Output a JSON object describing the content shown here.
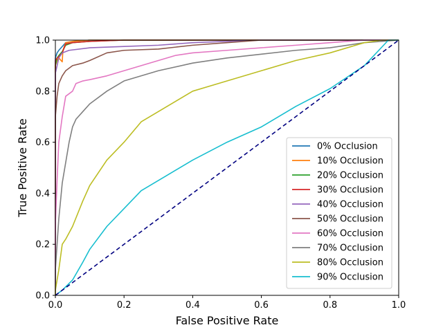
{
  "chart_data": {
    "type": "line",
    "xlabel": "False Positive Rate",
    "ylabel": "True Positive Rate",
    "xlim": [
      0.0,
      1.0
    ],
    "ylim": [
      0.0,
      1.0
    ],
    "xticks": [
      "0.0",
      "0.2",
      "0.4",
      "0.6",
      "0.8",
      "1.0"
    ],
    "yticks": [
      "0.0",
      "0.2",
      "0.4",
      "0.6",
      "0.8",
      "1.0"
    ],
    "grid": false,
    "legend_position": "lower-right",
    "series": [
      {
        "name": "0% Occlusion",
        "color": "#1f77b4",
        "x": [
          0,
          0,
          0.005,
          0.01,
          0.02,
          0.03,
          0.05,
          0.1,
          0.2,
          1.0
        ],
        "y": [
          0,
          0.93,
          0.95,
          0.96,
          0.975,
          0.99,
          0.995,
          1.0,
          1.0,
          1.0
        ]
      },
      {
        "name": "10% Occlusion",
        "color": "#ff7f0e",
        "x": [
          0,
          0,
          0.005,
          0.01,
          0.02,
          0.022,
          0.03,
          0.05,
          0.1,
          1.0
        ],
        "y": [
          0,
          0.9,
          0.92,
          0.93,
          0.915,
          0.96,
          0.99,
          0.995,
          1.0,
          1.0
        ]
      },
      {
        "name": "20% Occlusion",
        "color": "#2ca02c",
        "x": [
          0,
          0,
          0.005,
          0.01,
          0.02,
          0.03,
          0.05,
          0.1,
          0.2,
          1.0
        ],
        "y": [
          0,
          0.9,
          0.93,
          0.94,
          0.955,
          0.98,
          0.99,
          0.995,
          1.0,
          1.0
        ]
      },
      {
        "name": "30% Occlusion",
        "color": "#d62728",
        "x": [
          0,
          0,
          0.005,
          0.01,
          0.02,
          0.03,
          0.05,
          0.1,
          0.2,
          1.0
        ],
        "y": [
          0,
          0.92,
          0.93,
          0.935,
          0.95,
          0.985,
          0.99,
          0.995,
          1.0,
          1.0
        ]
      },
      {
        "name": "40% Occlusion",
        "color": "#9467bd",
        "x": [
          0,
          0,
          0.005,
          0.01,
          0.02,
          0.04,
          0.1,
          0.2,
          0.3,
          0.4,
          0.5,
          0.6,
          0.7,
          0.8,
          0.9,
          1.0
        ],
        "y": [
          0,
          0.87,
          0.9,
          0.93,
          0.95,
          0.96,
          0.97,
          0.975,
          0.98,
          0.99,
          0.995,
          1.0,
          1.0,
          1.0,
          1.0,
          1.0
        ]
      },
      {
        "name": "50% Occlusion",
        "color": "#8c564b",
        "x": [
          0,
          0,
          0.005,
          0.01,
          0.02,
          0.03,
          0.05,
          0.08,
          0.1,
          0.15,
          0.2,
          0.3,
          0.4,
          0.5,
          0.6,
          0.7,
          0.8,
          0.9,
          1.0
        ],
        "y": [
          0,
          0.7,
          0.78,
          0.83,
          0.86,
          0.88,
          0.9,
          0.91,
          0.92,
          0.95,
          0.96,
          0.965,
          0.98,
          0.99,
          1.0,
          1.0,
          1.0,
          1.0,
          1.0
        ]
      },
      {
        "name": "60% Occlusion",
        "color": "#e377c2",
        "x": [
          0,
          0,
          0.005,
          0.01,
          0.02,
          0.03,
          0.05,
          0.06,
          0.08,
          0.1,
          0.15,
          0.2,
          0.25,
          0.3,
          0.35,
          0.4,
          0.5,
          0.6,
          0.7,
          0.8,
          0.9,
          1.0
        ],
        "y": [
          0,
          0.28,
          0.45,
          0.6,
          0.7,
          0.78,
          0.8,
          0.83,
          0.84,
          0.845,
          0.86,
          0.88,
          0.9,
          0.92,
          0.94,
          0.95,
          0.96,
          0.97,
          0.98,
          0.99,
          1.0,
          1.0
        ]
      },
      {
        "name": "70% Occlusion",
        "color": "#7f7f7f",
        "x": [
          0,
          0,
          0.005,
          0.01,
          0.02,
          0.03,
          0.04,
          0.05,
          0.06,
          0.08,
          0.1,
          0.15,
          0.2,
          0.25,
          0.3,
          0.4,
          0.5,
          0.6,
          0.7,
          0.8,
          0.9,
          1.0
        ],
        "y": [
          0,
          0.1,
          0.2,
          0.3,
          0.44,
          0.52,
          0.6,
          0.66,
          0.69,
          0.72,
          0.75,
          0.8,
          0.84,
          0.86,
          0.88,
          0.91,
          0.93,
          0.945,
          0.96,
          0.97,
          0.99,
          1.0
        ]
      },
      {
        "name": "80% Occlusion",
        "color": "#bcbd22",
        "x": [
          0,
          0,
          0.01,
          0.02,
          0.03,
          0.05,
          0.08,
          0.1,
          0.15,
          0.2,
          0.25,
          0.3,
          0.35,
          0.4,
          0.5,
          0.6,
          0.7,
          0.8,
          0.85,
          0.9,
          0.95,
          1.0
        ],
        "y": [
          0,
          0.02,
          0.1,
          0.2,
          0.22,
          0.27,
          0.37,
          0.43,
          0.53,
          0.6,
          0.68,
          0.72,
          0.76,
          0.8,
          0.84,
          0.88,
          0.92,
          0.95,
          0.97,
          0.99,
          1.0,
          1.0
        ]
      },
      {
        "name": "90% Occlusion",
        "color": "#17becf",
        "x": [
          0,
          0.02,
          0.05,
          0.08,
          0.1,
          0.15,
          0.2,
          0.25,
          0.3,
          0.4,
          0.5,
          0.6,
          0.7,
          0.8,
          0.9,
          0.97,
          1.0
        ],
        "y": [
          0,
          0.02,
          0.06,
          0.13,
          0.18,
          0.27,
          0.34,
          0.41,
          0.45,
          0.53,
          0.6,
          0.66,
          0.74,
          0.81,
          0.9,
          1.0,
          1.0
        ]
      }
    ],
    "reference_line": {
      "style": "dashed",
      "color": "#000080",
      "x": [
        0,
        1
      ],
      "y": [
        0,
        1
      ]
    }
  }
}
